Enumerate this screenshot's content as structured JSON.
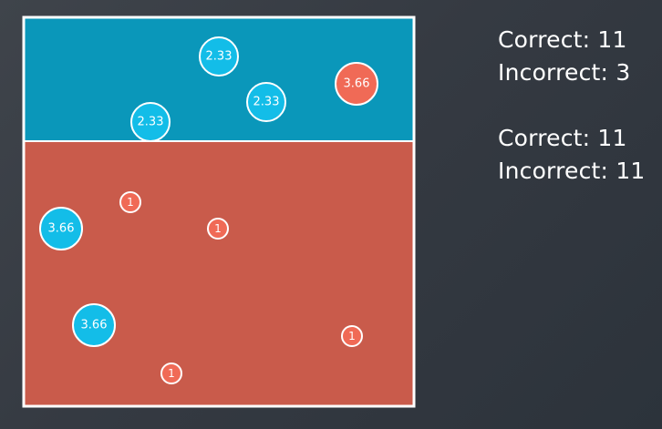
{
  "regions": {
    "top": {
      "name": "blue-region",
      "color": "#0a97ba"
    },
    "bottom": {
      "name": "red-region",
      "color": "#c95b4b"
    }
  },
  "points": [
    {
      "label": "2.33",
      "class": "blue"
    },
    {
      "label": "2.33",
      "class": "blue"
    },
    {
      "label": "2.33",
      "class": "blue"
    },
    {
      "label": "3.66",
      "class": "red"
    },
    {
      "label": "3.66",
      "class": "blue"
    },
    {
      "label": "3.66",
      "class": "blue"
    },
    {
      "label": "1",
      "class": "red"
    },
    {
      "label": "1",
      "class": "red"
    },
    {
      "label": "1",
      "class": "red"
    },
    {
      "label": "1",
      "class": "red"
    }
  ],
  "colors": {
    "blue_point": "#13bde8",
    "red_point": "#f06a56",
    "border": "#ffffff",
    "text": "#ffffff"
  },
  "scores": {
    "first": {
      "correct_label": "Correct: 11",
      "incorrect_label": "Incorrect: 3"
    },
    "second": {
      "correct_label": "Correct: 11",
      "incorrect_label": "Incorrect: 11"
    }
  }
}
